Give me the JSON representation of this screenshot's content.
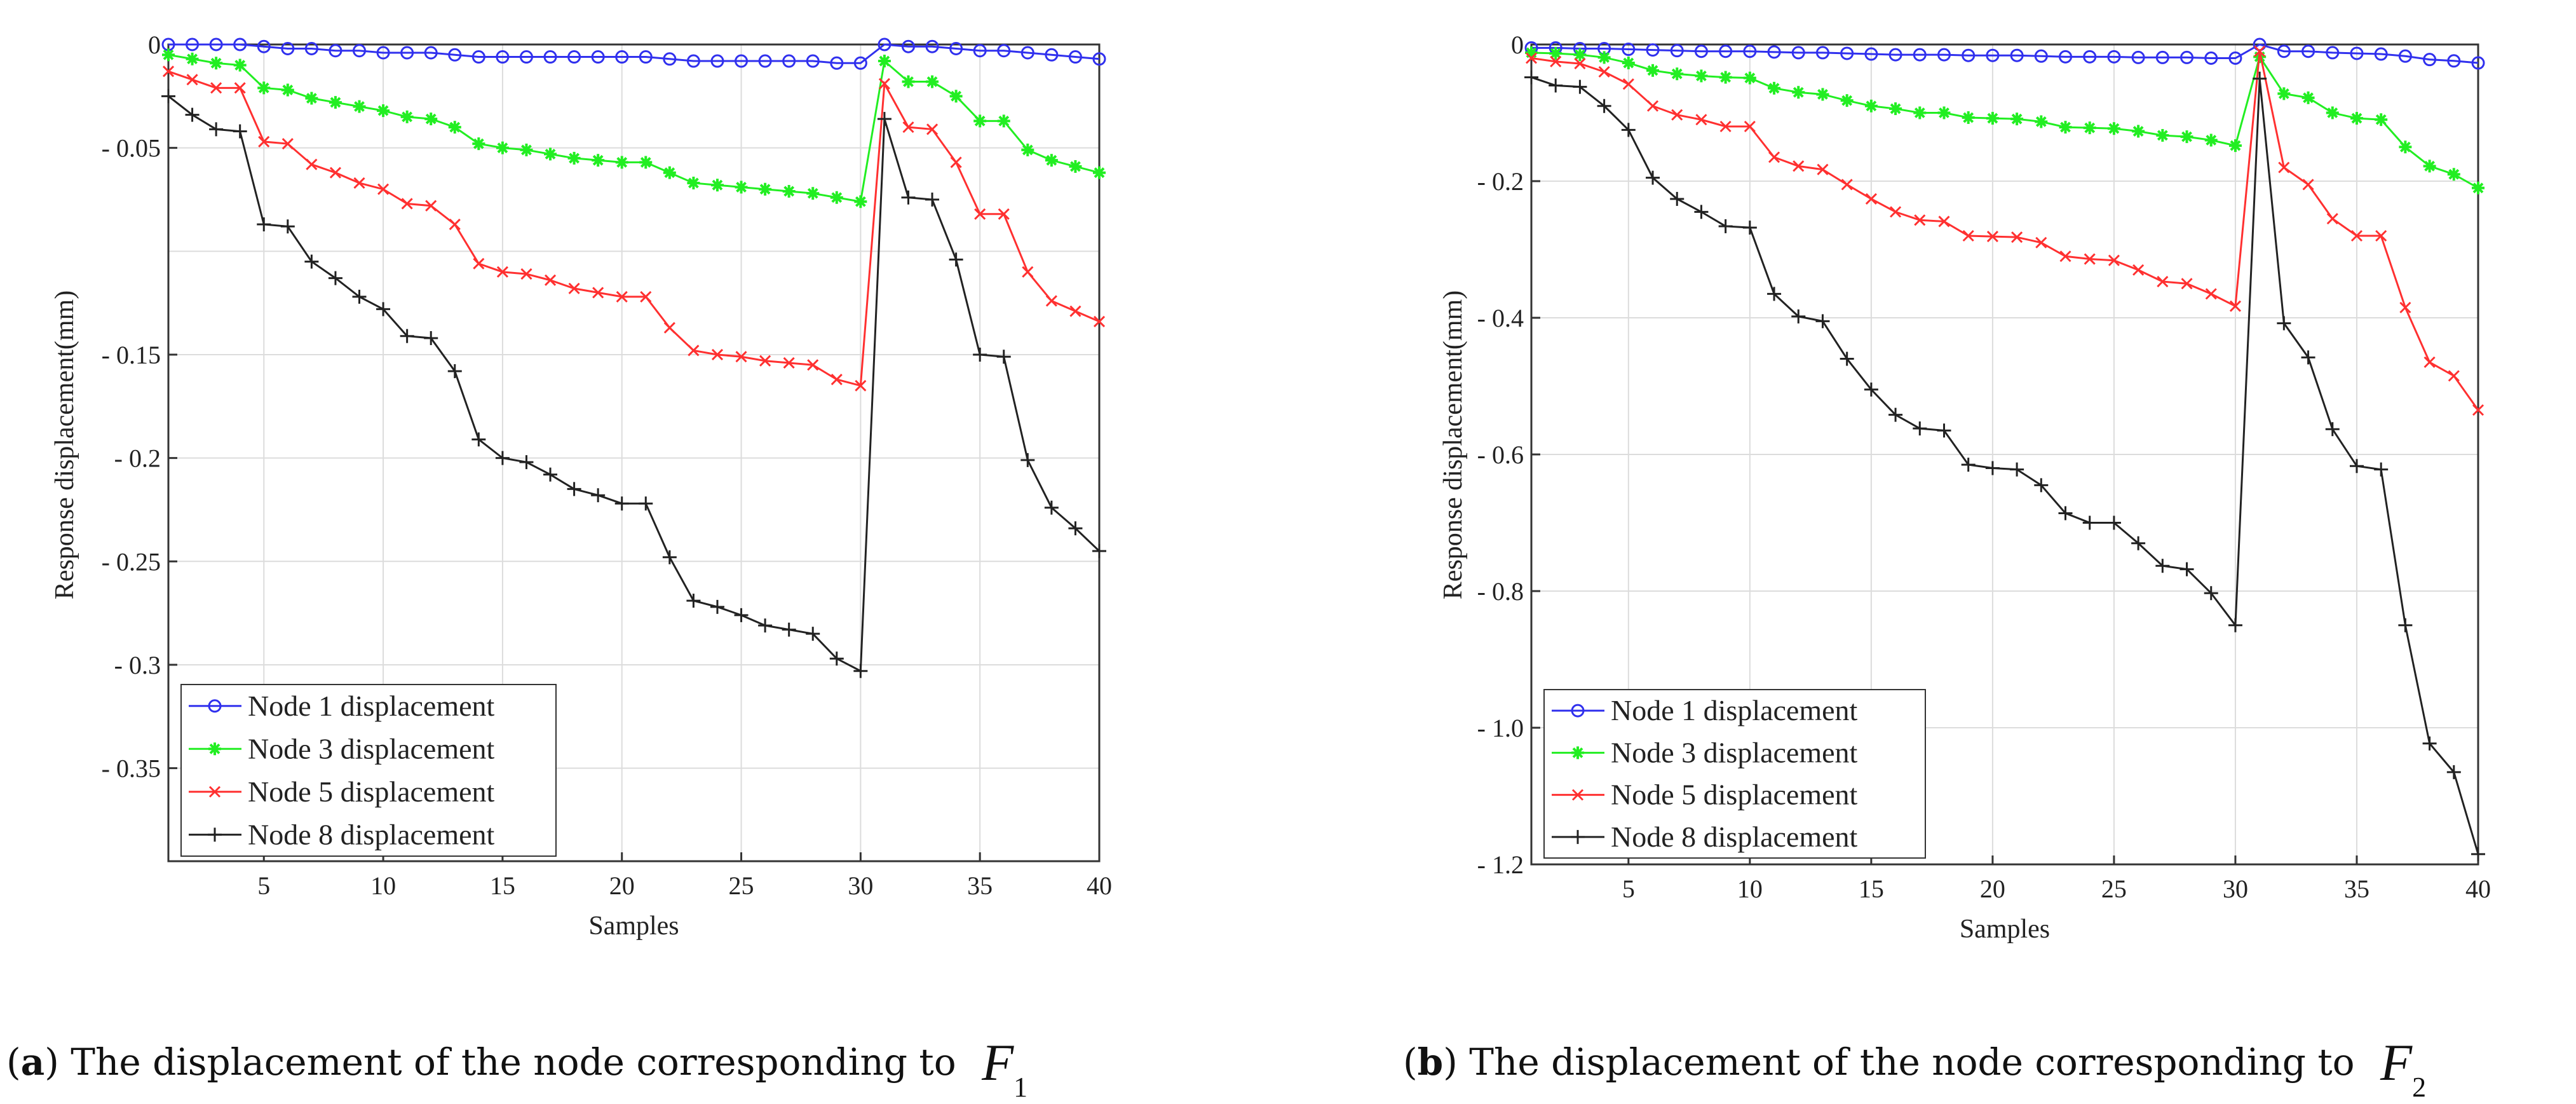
{
  "chart_data": [
    {
      "type": "line",
      "id": "a",
      "xlabel": "Samples",
      "ylabel": "Response displacement(mm)",
      "xlim": [
        1,
        40
      ],
      "ylim": [
        -0.395,
        0
      ],
      "xticks": [
        5,
        10,
        15,
        20,
        25,
        30,
        35,
        40
      ],
      "xtick_labels": [
        "5",
        "10",
        "15",
        "20",
        "25",
        "30",
        "35",
        "40"
      ],
      "yticks": [
        0,
        -0.05,
        -0.15,
        -0.2,
        -0.25,
        -0.3,
        -0.35
      ],
      "ytick_labels": [
        "0",
        "- 0.05",
        "- 0.15",
        "- 0.2",
        "- 0.25",
        "- 0.3",
        "- 0.35"
      ],
      "ygrid": [
        0,
        -0.05,
        -0.1,
        -0.15,
        -0.2,
        -0.25,
        -0.3,
        -0.35
      ],
      "grid": true,
      "legend_position": "bottom-left",
      "x": [
        1,
        2,
        3,
        4,
        5,
        6,
        7,
        8,
        9,
        10,
        11,
        12,
        13,
        14,
        15,
        16,
        17,
        18,
        19,
        20,
        21,
        22,
        23,
        24,
        25,
        26,
        27,
        28,
        29,
        30,
        31,
        32,
        33,
        34,
        35,
        36,
        37,
        38,
        39,
        40
      ],
      "series": [
        {
          "name": "Node 1 displacement",
          "color": "#3030ee",
          "marker": "circle",
          "values": [
            0,
            0,
            0,
            0,
            -0.001,
            -0.002,
            -0.002,
            -0.003,
            -0.003,
            -0.004,
            -0.004,
            -0.004,
            -0.005,
            -0.006,
            -0.006,
            -0.006,
            -0.006,
            -0.006,
            -0.006,
            -0.006,
            -0.006,
            -0.007,
            -0.008,
            -0.008,
            -0.008,
            -0.008,
            -0.008,
            -0.008,
            -0.009,
            -0.009,
            0,
            -0.001,
            -0.001,
            -0.002,
            -0.003,
            -0.003,
            -0.004,
            -0.005,
            -0.006,
            -0.007
          ]
        },
        {
          "name": "Node 3 displacement",
          "color": "#22ee22",
          "marker": "star",
          "values": [
            -0.005,
            -0.007,
            -0.009,
            -0.01,
            -0.021,
            -0.022,
            -0.026,
            -0.028,
            -0.03,
            -0.032,
            -0.035,
            -0.036,
            -0.04,
            -0.048,
            -0.05,
            -0.051,
            -0.053,
            -0.055,
            -0.056,
            -0.057,
            -0.057,
            -0.062,
            -0.067,
            -0.068,
            -0.069,
            -0.07,
            -0.071,
            -0.072,
            -0.074,
            -0.076,
            -0.008,
            -0.018,
            -0.018,
            -0.025,
            -0.037,
            -0.037,
            -0.051,
            -0.056,
            -0.059,
            -0.062
          ]
        },
        {
          "name": "Node 5 displacement",
          "color": "#ff3030",
          "marker": "x",
          "values": [
            -0.013,
            -0.017,
            -0.021,
            -0.021,
            -0.047,
            -0.048,
            -0.058,
            -0.062,
            -0.067,
            -0.07,
            -0.077,
            -0.078,
            -0.087,
            -0.106,
            -0.11,
            -0.111,
            -0.114,
            -0.118,
            -0.12,
            -0.122,
            -0.122,
            -0.137,
            -0.148,
            -0.15,
            -0.151,
            -0.153,
            -0.154,
            -0.155,
            -0.162,
            -0.165,
            -0.019,
            -0.04,
            -0.041,
            -0.057,
            -0.082,
            -0.082,
            -0.11,
            -0.124,
            -0.129,
            -0.134
          ]
        },
        {
          "name": "Node 8 displacement",
          "color": "#222222",
          "marker": "plus",
          "values": [
            -0.025,
            -0.034,
            -0.041,
            -0.042,
            -0.087,
            -0.088,
            -0.105,
            -0.113,
            -0.122,
            -0.128,
            -0.141,
            -0.142,
            -0.158,
            -0.191,
            -0.2,
            -0.202,
            -0.208,
            -0.215,
            -0.218,
            -0.222,
            -0.222,
            -0.248,
            -0.269,
            -0.272,
            -0.276,
            -0.281,
            -0.283,
            -0.285,
            -0.297,
            -0.303,
            -0.036,
            -0.074,
            -0.075,
            -0.104,
            -0.15,
            -0.151,
            -0.201,
            -0.224,
            -0.234,
            -0.245
          ]
        }
      ]
    },
    {
      "type": "line",
      "id": "b",
      "xlabel": "Samples",
      "ylabel": "Response displacement(mm)",
      "xlim": [
        1,
        40
      ],
      "ylim": [
        -1.2,
        0
      ],
      "xticks": [
        5,
        10,
        15,
        20,
        25,
        30,
        35,
        40
      ],
      "xtick_labels": [
        "5",
        "10",
        "15",
        "20",
        "25",
        "30",
        "35",
        "40"
      ],
      "yticks": [
        0,
        -0.2,
        -0.4,
        -0.6,
        -0.8,
        -1.0,
        -1.2
      ],
      "ytick_labels": [
        "0",
        "- 0.2",
        "- 0.4",
        "- 0.6",
        "- 0.8",
        "- 1.0",
        "- 1.2"
      ],
      "ygrid": [
        0,
        -0.2,
        -0.4,
        -0.6,
        -0.8,
        -1.0,
        -1.2
      ],
      "grid": true,
      "legend_position": "bottom-left",
      "x": [
        1,
        2,
        3,
        4,
        5,
        6,
        7,
        8,
        9,
        10,
        11,
        12,
        13,
        14,
        15,
        16,
        17,
        18,
        19,
        20,
        21,
        22,
        23,
        24,
        25,
        26,
        27,
        28,
        29,
        30,
        31,
        32,
        33,
        34,
        35,
        36,
        37,
        38,
        39,
        40
      ],
      "series": [
        {
          "name": "Node 1 displacement",
          "color": "#3030ee",
          "marker": "circle",
          "values": [
            -0.005,
            -0.005,
            -0.006,
            -0.006,
            -0.007,
            -0.008,
            -0.009,
            -0.01,
            -0.01,
            -0.01,
            -0.011,
            -0.012,
            -0.012,
            -0.013,
            -0.014,
            -0.015,
            -0.015,
            -0.015,
            -0.016,
            -0.016,
            -0.016,
            -0.017,
            -0.018,
            -0.018,
            -0.018,
            -0.019,
            -0.019,
            -0.019,
            -0.02,
            -0.02,
            0,
            -0.01,
            -0.01,
            -0.012,
            -0.013,
            -0.014,
            -0.017,
            -0.022,
            -0.024,
            -0.027
          ]
        },
        {
          "name": "Node 3 displacement",
          "color": "#22ee22",
          "marker": "star",
          "values": [
            -0.012,
            -0.013,
            -0.015,
            -0.019,
            -0.027,
            -0.038,
            -0.043,
            -0.046,
            -0.048,
            -0.049,
            -0.064,
            -0.07,
            -0.073,
            -0.082,
            -0.09,
            -0.094,
            -0.1,
            -0.1,
            -0.107,
            -0.108,
            -0.109,
            -0.113,
            -0.121,
            -0.122,
            -0.123,
            -0.127,
            -0.133,
            -0.135,
            -0.14,
            -0.148,
            -0.018,
            -0.072,
            -0.078,
            -0.1,
            -0.108,
            -0.11,
            -0.15,
            -0.178,
            -0.19,
            -0.21
          ]
        },
        {
          "name": "Node 5 displacement",
          "color": "#ff3030",
          "marker": "x",
          "values": [
            -0.02,
            -0.025,
            -0.028,
            -0.04,
            -0.058,
            -0.09,
            -0.103,
            -0.11,
            -0.12,
            -0.12,
            -0.165,
            -0.178,
            -0.183,
            -0.205,
            -0.226,
            -0.245,
            -0.257,
            -0.259,
            -0.28,
            -0.281,
            -0.282,
            -0.29,
            -0.31,
            -0.314,
            -0.316,
            -0.33,
            -0.347,
            -0.35,
            -0.365,
            -0.383,
            -0.01,
            -0.18,
            -0.205,
            -0.255,
            -0.28,
            -0.28,
            -0.385,
            -0.465,
            -0.485,
            -0.535
          ]
        },
        {
          "name": "Node 8 displacement",
          "color": "#222222",
          "marker": "plus",
          "values": [
            -0.048,
            -0.06,
            -0.062,
            -0.09,
            -0.125,
            -0.195,
            -0.226,
            -0.245,
            -0.266,
            -0.268,
            -0.365,
            -0.398,
            -0.405,
            -0.46,
            -0.505,
            -0.542,
            -0.562,
            -0.565,
            -0.615,
            -0.62,
            -0.622,
            -0.645,
            -0.686,
            -0.7,
            -0.7,
            -0.73,
            -0.763,
            -0.768,
            -0.803,
            -0.85,
            -0.05,
            -0.408,
            -0.458,
            -0.563,
            -0.617,
            -0.622,
            -0.85,
            -1.023,
            -1.065,
            -1.185
          ]
        }
      ]
    }
  ],
  "captions": {
    "a": {
      "label": "a",
      "open": "(",
      "close": ")",
      "text": " The displacement of the node corresponding to ",
      "symbol": "F",
      "subscript": "1"
    },
    "b": {
      "label": "b",
      "open": "(",
      "close": ")",
      "text": " The displacement of the node corresponding to ",
      "symbol": "F",
      "subscript": "2"
    }
  }
}
